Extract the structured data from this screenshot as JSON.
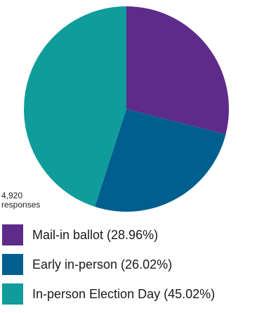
{
  "chart_data": {
    "type": "pie",
    "note": "4,920\nresponses",
    "start_angle_deg": 0,
    "direction": "clockwise",
    "legend_position": "bottom",
    "slices": [
      {
        "label": "Mail-in ballot (28.96%)",
        "value": 28.96,
        "color": "#5e2b8a"
      },
      {
        "label": "Early in-person (26.02%)",
        "value": 26.02,
        "color": "#005f8e"
      },
      {
        "label": "In-person Election Day (45.02%)",
        "value": 45.02,
        "color": "#0f9c9b"
      }
    ]
  }
}
